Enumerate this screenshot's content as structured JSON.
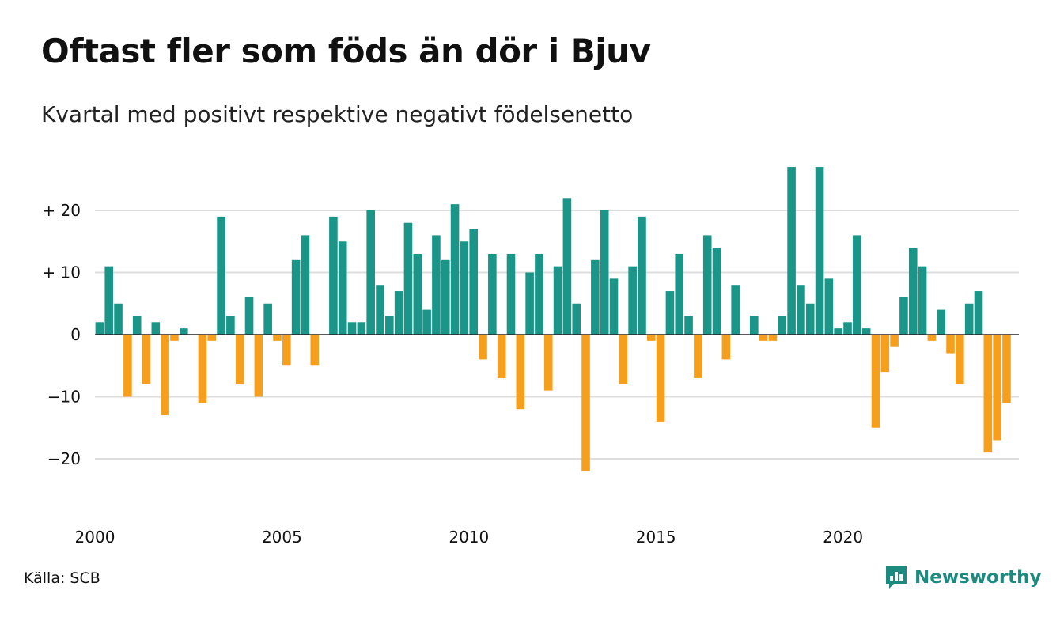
{
  "header": {
    "title": "Oftast fler som föds än dör i Bjuv",
    "subtitle": "Kvartal med positivt respektive negativt födelsenetto"
  },
  "footer": {
    "source": "Källa: SCB",
    "brand": "Newsworthy",
    "brand_icon": "bar-chart-speech-bubble-icon"
  },
  "colors": {
    "positive": "#1a9588",
    "negative": "#f59f1d",
    "grid": "#dddddd",
    "zero_line": "#222222",
    "brand": "#1d8a7f"
  },
  "chart_data": {
    "type": "bar",
    "x_start_year": 2000,
    "periods_per_year": 4,
    "x_ticks": [
      2000,
      2005,
      2010,
      2015,
      2020
    ],
    "y_ticks": [
      {
        "value": 20,
        "label": "+ 20"
      },
      {
        "value": 10,
        "label": "+ 10"
      },
      {
        "value": 0,
        "label": "0"
      },
      {
        "value": -10,
        "label": "−10"
      },
      {
        "value": -20,
        "label": "−20"
      }
    ],
    "ylim": [
      -22,
      27
    ],
    "grid": true,
    "values": [
      2,
      11,
      5,
      -10,
      3,
      -8,
      2,
      -13,
      -1,
      1,
      0,
      -11,
      -1,
      19,
      3,
      -8,
      6,
      -10,
      5,
      -1,
      -5,
      12,
      16,
      -5,
      0,
      19,
      15,
      2,
      2,
      20,
      8,
      3,
      7,
      18,
      13,
      4,
      16,
      12,
      21,
      15,
      17,
      -4,
      13,
      -7,
      13,
      -12,
      10,
      13,
      -9,
      11,
      22,
      5,
      -22,
      12,
      20,
      9,
      -8,
      11,
      19,
      -1,
      -14,
      7,
      13,
      3,
      -7,
      16,
      14,
      -4,
      8,
      0,
      3,
      -1,
      -1,
      3,
      27,
      8,
      5,
      27,
      9,
      1,
      2,
      16,
      1,
      -15,
      -6,
      -2,
      6,
      14,
      11,
      -1,
      4,
      -3,
      -8,
      5,
      7,
      -19,
      -17,
      -11
    ]
  }
}
